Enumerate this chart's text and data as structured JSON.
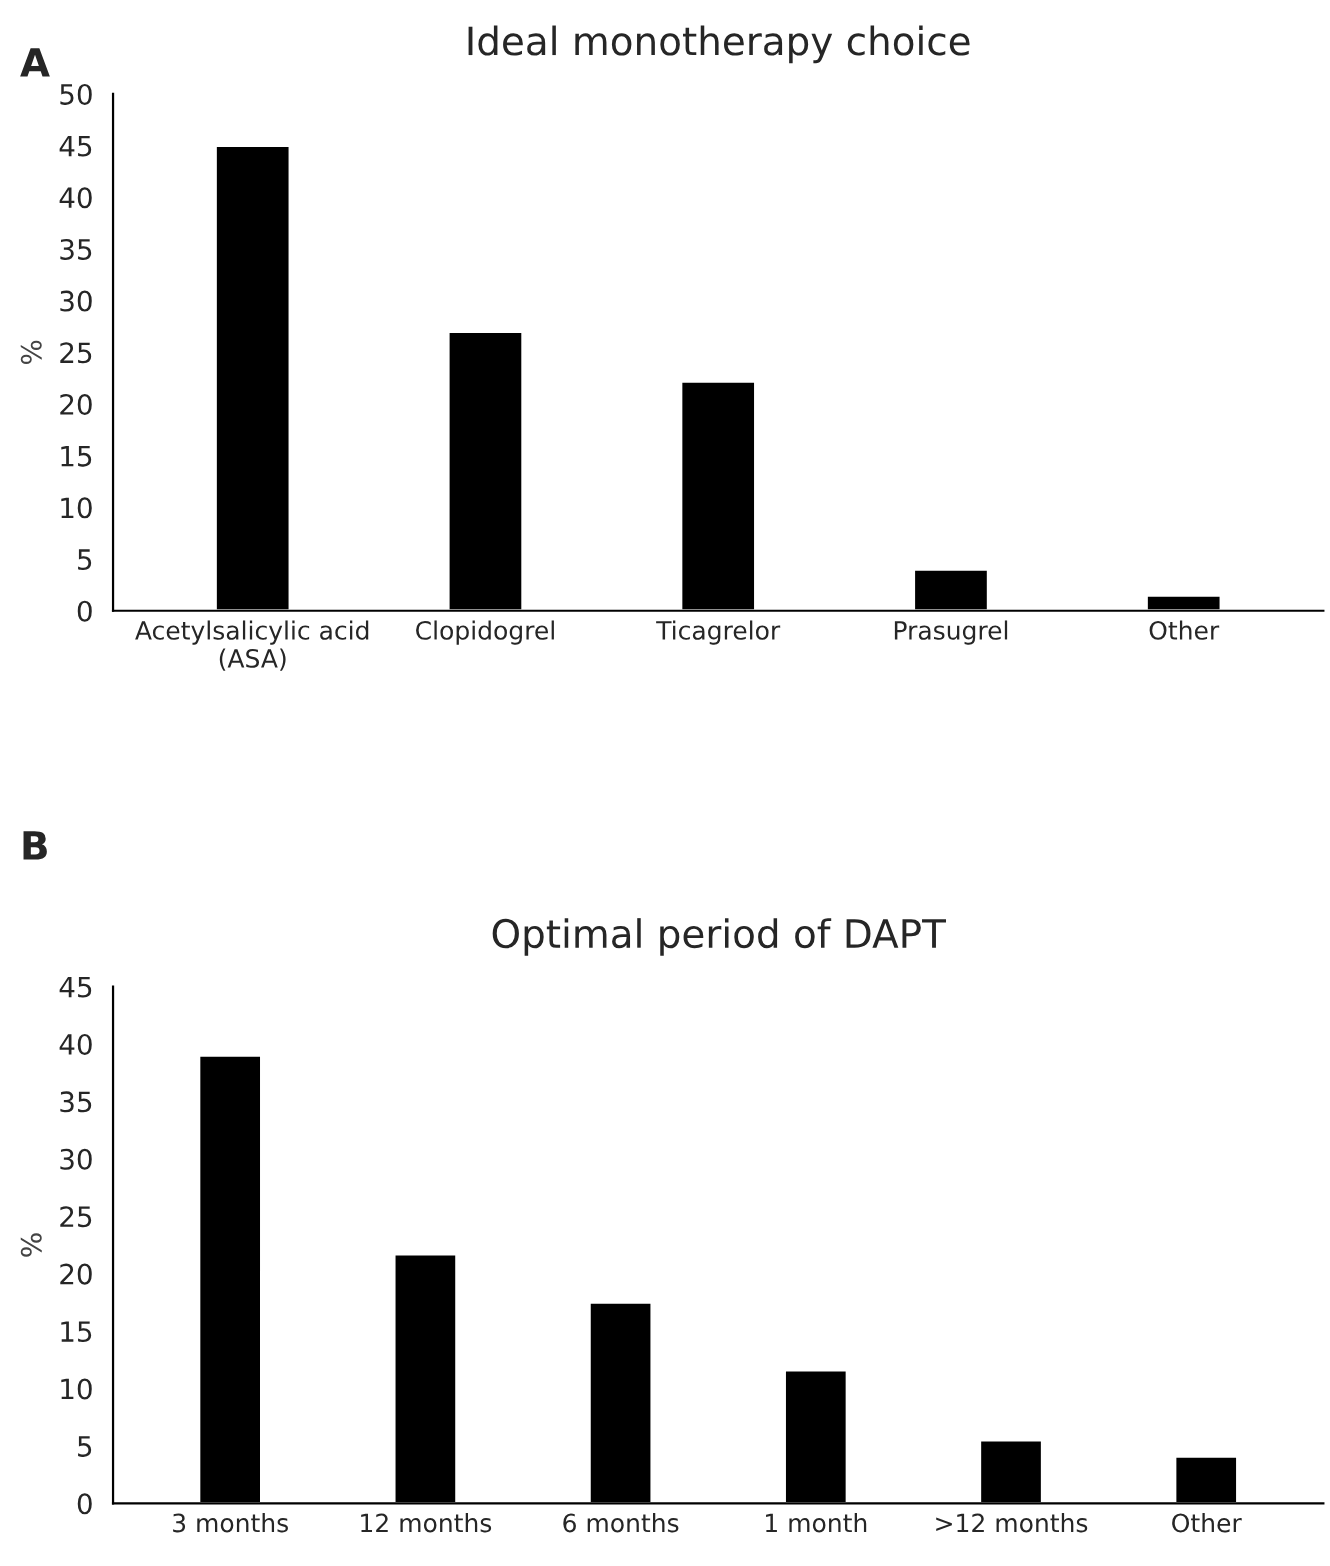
{
  "chart_data": [
    {
      "type": "bar",
      "title": "Ideal monotherapy choice",
      "ylabel": "%",
      "annotations": [
        "A"
      ],
      "categories": [
        "Acetylsalicylic acid\n(ASA)",
        "Clopidogrel",
        "Ticagrelor",
        "Prasugrel",
        "Other"
      ],
      "values": [
        45,
        27,
        22.2,
        4,
        1.5
      ],
      "color": "#000000",
      "ylim": [
        0,
        50
      ],
      "yticks": [
        0,
        5,
        10,
        15,
        20,
        25,
        30,
        35,
        40,
        45,
        50
      ],
      "grid": false,
      "legend": false
    },
    {
      "type": "bar",
      "title": "Optimal period of DAPT",
      "ylabel": "%",
      "annotations": [
        "B"
      ],
      "categories": [
        "3 months",
        "12 months",
        "6 months",
        "1 month",
        ">12 months",
        "Other"
      ],
      "values": [
        39,
        21.7,
        17.5,
        11.6,
        5.5,
        4.1
      ],
      "color": "#000000",
      "ylim": [
        0,
        45
      ],
      "yticks": [
        0,
        5,
        10,
        15,
        20,
        25,
        30,
        35,
        40,
        45
      ],
      "grid": false,
      "legend": false
    }
  ]
}
